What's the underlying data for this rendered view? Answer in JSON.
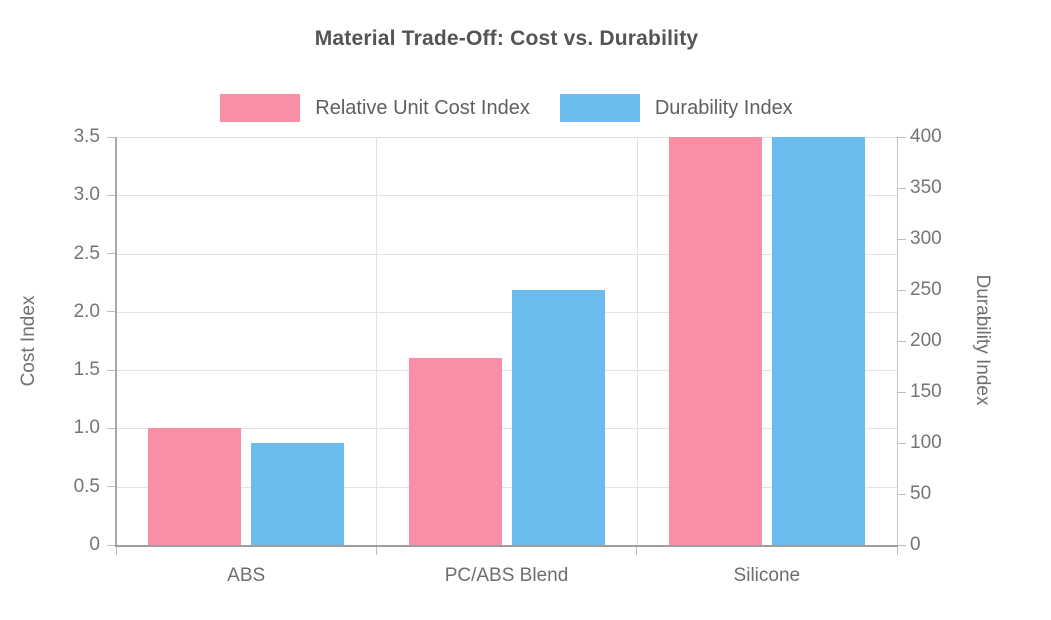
{
  "chart_data": {
    "type": "bar",
    "title": "Material Trade-Off: Cost vs. Durability",
    "categories": [
      "ABS",
      "PC/ABS Blend",
      "Silicone"
    ],
    "series": [
      {
        "name": "Relative Unit Cost Index",
        "axis": "left",
        "color": "#fa8ea5",
        "values": [
          1.0,
          1.6,
          3.5
        ]
      },
      {
        "name": "Durability Index",
        "axis": "right",
        "color": "#6abbee",
        "values": [
          100,
          250,
          400
        ]
      }
    ],
    "left_axis": {
      "label": "Cost Index",
      "min": 0,
      "max": 3.5,
      "ticks": [
        "0",
        "0.5",
        "1.0",
        "1.5",
        "2.0",
        "2.5",
        "3.0",
        "3.5"
      ]
    },
    "right_axis": {
      "label": "Durability Index",
      "min": 0,
      "max": 400,
      "ticks": [
        "0",
        "50",
        "100",
        "150",
        "200",
        "250",
        "300",
        "350",
        "400"
      ]
    },
    "grid": true,
    "legend_position": "top-center",
    "colors": {
      "grid": "#e2e2e2",
      "axis_line": "#a8a8a8",
      "tick_mark": "#bdbdbd",
      "tick_text": "#757575",
      "title_text": "#545454",
      "background": "#ffffff"
    }
  }
}
